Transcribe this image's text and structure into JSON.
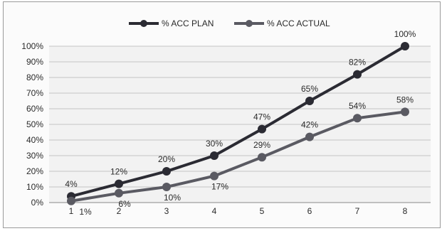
{
  "chart_data": {
    "type": "line",
    "title": "",
    "xlabel": "",
    "ylabel": "",
    "categories": [
      "1",
      "2",
      "3",
      "4",
      "5",
      "6",
      "7",
      "8"
    ],
    "y_ticks": [
      "0%",
      "10%",
      "20%",
      "30%",
      "40%",
      "50%",
      "60%",
      "70%",
      "80%",
      "90%",
      "100%"
    ],
    "ylim": [
      0,
      100
    ],
    "grid": true,
    "legend_position": "top",
    "series": [
      {
        "name": "% ACC PLAN",
        "color": "#2b2b33",
        "values": [
          4,
          12,
          20,
          30,
          47,
          65,
          82,
          100
        ],
        "labels": [
          "4%",
          "12%",
          "20%",
          "30%",
          "47%",
          "65%",
          "82%",
          "100%"
        ]
      },
      {
        "name": "% ACC ACTUAL",
        "color": "#5a5a62",
        "values": [
          1,
          6,
          10,
          17,
          29,
          42,
          54,
          58
        ],
        "labels": [
          "1%",
          "6%",
          "10%",
          "17%",
          "29%",
          "42%",
          "54%",
          "58%"
        ]
      }
    ]
  }
}
